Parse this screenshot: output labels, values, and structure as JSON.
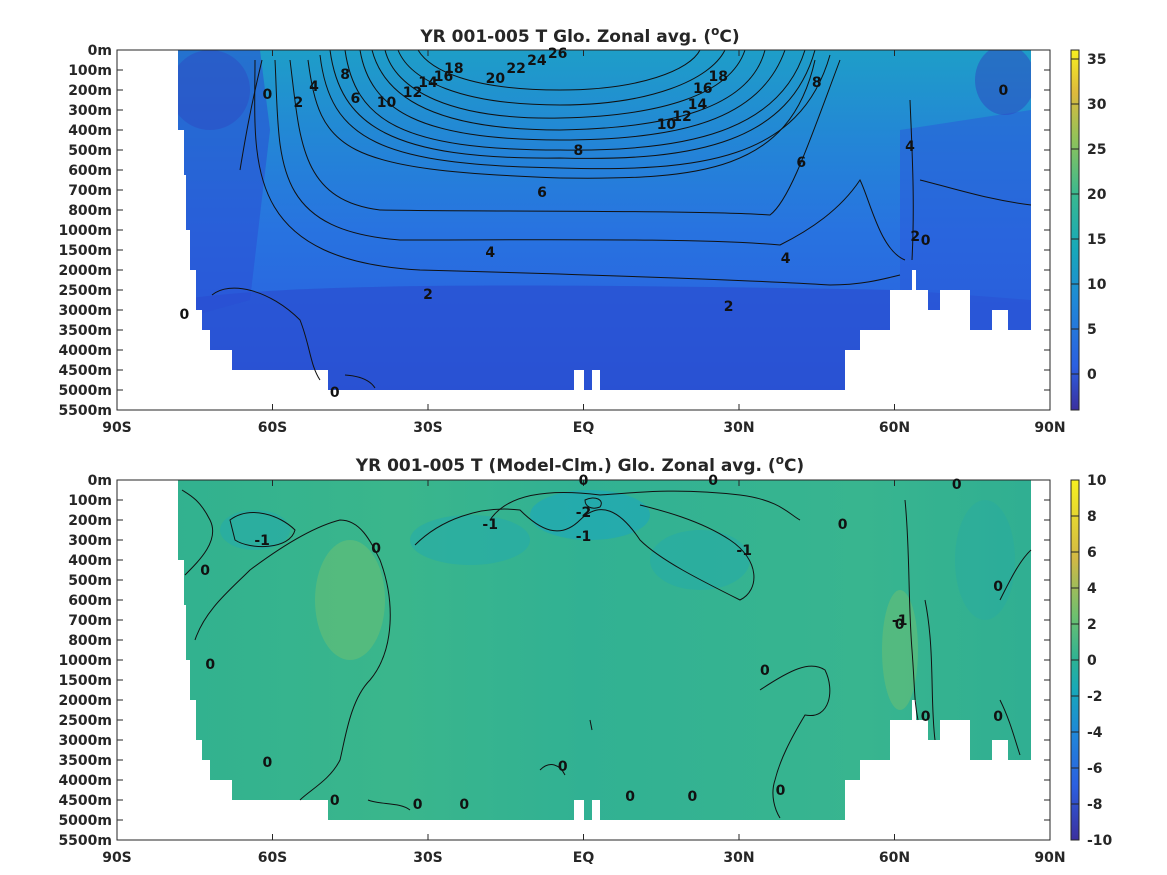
{
  "chart_data": [
    {
      "type": "heatmap",
      "title": "YR 001-005 T Glo. Zonal avg. (°C)",
      "title_main": "YR 001-005 T Glo. Zonal avg. (",
      "title_sup": "o",
      "title_end": "C)",
      "x_ticks": [
        "90S",
        "60S",
        "30S",
        "EQ",
        "30N",
        "60N",
        "90N"
      ],
      "x_values": [
        -90,
        -60,
        -30,
        0,
        30,
        60,
        90
      ],
      "y_ticks": [
        "0m",
        "100m",
        "200m",
        "300m",
        "400m",
        "500m",
        "600m",
        "700m",
        "800m",
        "1000m",
        "1500m",
        "2000m",
        "2500m",
        "3000m",
        "3500m",
        "4000m",
        "4500m",
        "5000m",
        "5500m"
      ],
      "xlim": [
        -90,
        90
      ],
      "colorbar": {
        "ticks": [
          "35",
          "30",
          "25",
          "20",
          "15",
          "10",
          "5",
          "0"
        ],
        "tick_values": [
          35,
          30,
          25,
          20,
          15,
          10,
          5,
          0
        ],
        "range": [
          -4,
          36
        ]
      },
      "contour_labels": [
        {
          "text": "26",
          "lat": -5,
          "depth_index": 0.15
        },
        {
          "text": "24",
          "lat": -9,
          "depth_index": 0.5
        },
        {
          "text": "22",
          "lat": -13,
          "depth_index": 0.9
        },
        {
          "text": "20",
          "lat": -17,
          "depth_index": 1.4
        },
        {
          "text": "18",
          "lat": -25,
          "depth_index": 0.9
        },
        {
          "text": "16",
          "lat": -27,
          "depth_index": 1.3
        },
        {
          "text": "14",
          "lat": -30,
          "depth_index": 1.6
        },
        {
          "text": "12",
          "lat": -33,
          "depth_index": 2.1
        },
        {
          "text": "10",
          "lat": -38,
          "depth_index": 2.6
        },
        {
          "text": "8",
          "lat": -46,
          "depth_index": 1.2
        },
        {
          "text": "6",
          "lat": -44,
          "depth_index": 2.4
        },
        {
          "text": "4",
          "lat": -52,
          "depth_index": 1.8
        },
        {
          "text": "2",
          "lat": -55,
          "depth_index": 2.6
        },
        {
          "text": "0",
          "lat": -61,
          "depth_index": 2.2
        },
        {
          "text": "18",
          "lat": 26,
          "depth_index": 1.3
        },
        {
          "text": "16",
          "lat": 23,
          "depth_index": 1.9
        },
        {
          "text": "14",
          "lat": 22,
          "depth_index": 2.7
        },
        {
          "text": "12",
          "lat": 19,
          "depth_index": 3.3
        },
        {
          "text": "10",
          "lat": 16,
          "depth_index": 3.7
        },
        {
          "text": "8",
          "lat": 45,
          "depth_index": 1.6
        },
        {
          "text": "8",
          "lat": -1,
          "depth_index": 5.0
        },
        {
          "text": "6",
          "lat": -8,
          "depth_index": 7.1
        },
        {
          "text": "6",
          "lat": 42,
          "depth_index": 5.6
        },
        {
          "text": "4",
          "lat": -18,
          "depth_index": 10.1
        },
        {
          "text": "4",
          "lat": 39,
          "depth_index": 10.4
        },
        {
          "text": "2",
          "lat": -30,
          "depth_index": 12.2
        },
        {
          "text": "2",
          "lat": 28,
          "depth_index": 12.8
        },
        {
          "text": "4",
          "lat": 63,
          "depth_index": 4.8
        },
        {
          "text": "2",
          "lat": 64,
          "depth_index": 9.3
        },
        {
          "text": "0",
          "lat": 66,
          "depth_index": 9.5
        },
        {
          "text": "0",
          "lat": 81,
          "depth_index": 2.0
        },
        {
          "text": "0",
          "lat": -77,
          "depth_index": 13.2
        },
        {
          "text": "0",
          "lat": -48,
          "depth_index": 17.1
        }
      ]
    },
    {
      "type": "heatmap",
      "title": "YR 001-005 T (Model-Clm.) Glo. Zonal avg. (°C)",
      "title_main": "YR 001-005 T (Model-Clm.) Glo. Zonal avg. (",
      "title_sup": "o",
      "title_end": "C)",
      "x_ticks": [
        "90S",
        "60S",
        "30S",
        "EQ",
        "30N",
        "60N",
        "90N"
      ],
      "x_values": [
        -90,
        -60,
        -30,
        0,
        30,
        60,
        90
      ],
      "y_ticks": [
        "0m",
        "100m",
        "200m",
        "300m",
        "400m",
        "500m",
        "600m",
        "700m",
        "800m",
        "1000m",
        "1500m",
        "2000m",
        "2500m",
        "3000m",
        "3500m",
        "4000m",
        "4500m",
        "5000m",
        "5500m"
      ],
      "xlim": [
        -90,
        90
      ],
      "colorbar": {
        "ticks": [
          "10",
          "8",
          "6",
          "4",
          "2",
          "0",
          "-2",
          "-4",
          "-6",
          "-8",
          "-10"
        ],
        "tick_values": [
          10,
          8,
          6,
          4,
          2,
          0,
          -2,
          -4,
          -6,
          -8,
          -10
        ],
        "range": [
          -10,
          10
        ]
      },
      "contour_labels": [
        {
          "text": "0",
          "lat": 0,
          "depth_index": 0.0
        },
        {
          "text": "0",
          "lat": 25,
          "depth_index": 0.0
        },
        {
          "text": "-2",
          "lat": 0,
          "depth_index": 1.6
        },
        {
          "text": "-1",
          "lat": -18,
          "depth_index": 2.2
        },
        {
          "text": "-1",
          "lat": 0,
          "depth_index": 2.8
        },
        {
          "text": "-1",
          "lat": 31,
          "depth_index": 3.5
        },
        {
          "text": "-1",
          "lat": -62,
          "depth_index": 3.0
        },
        {
          "text": "0",
          "lat": -40,
          "depth_index": 3.4
        },
        {
          "text": "0",
          "lat": 72,
          "depth_index": 0.2
        },
        {
          "text": "0",
          "lat": 50,
          "depth_index": 2.2
        },
        {
          "text": "0",
          "lat": -73,
          "depth_index": 4.5
        },
        {
          "text": "0",
          "lat": -72,
          "depth_index": 9.2
        },
        {
          "text": "0",
          "lat": 80,
          "depth_index": 5.3
        },
        {
          "text": "0",
          "lat": 61,
          "depth_index": 7.2
        },
        {
          "text": "-1",
          "lat": 61,
          "depth_index": 7.0
        },
        {
          "text": "0",
          "lat": 35,
          "depth_index": 9.5
        },
        {
          "text": "0",
          "lat": 66,
          "depth_index": 11.8
        },
        {
          "text": "0",
          "lat": 80,
          "depth_index": 11.8
        },
        {
          "text": "0",
          "lat": -61,
          "depth_index": 14.1
        },
        {
          "text": "0",
          "lat": -4,
          "depth_index": 14.3
        },
        {
          "text": "0",
          "lat": -48,
          "depth_index": 16.0
        },
        {
          "text": "0",
          "lat": -32,
          "depth_index": 16.2
        },
        {
          "text": "0",
          "lat": -23,
          "depth_index": 16.2
        },
        {
          "text": "0",
          "lat": 9,
          "depth_index": 15.8
        },
        {
          "text": "0",
          "lat": 21,
          "depth_index": 15.8
        },
        {
          "text": "0",
          "lat": 38,
          "depth_index": 15.5
        }
      ]
    }
  ]
}
